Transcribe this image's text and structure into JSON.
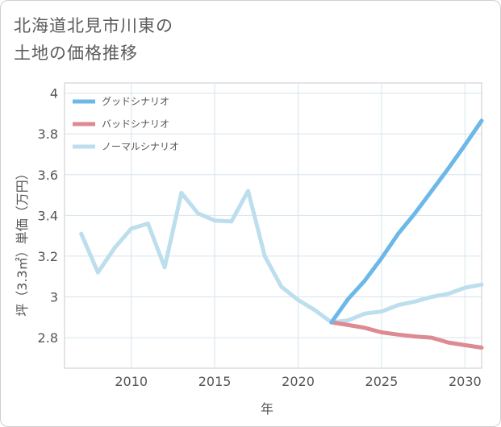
{
  "page": {
    "title_line1": "北海道北見市川東の",
    "title_line2": "土地の価格推移"
  },
  "chart_data": {
    "type": "line",
    "title": "北海道北見市川東の土地の価格推移",
    "xlabel": "年",
    "ylabel": "坪（3.3㎡）単価（万円）",
    "xlim": [
      2006,
      2031
    ],
    "ylim": [
      2.65,
      4.05
    ],
    "xticks": [
      2010,
      2015,
      2020,
      2025,
      2030
    ],
    "yticks": [
      2.8,
      3.0,
      3.2,
      3.4,
      3.6,
      3.8,
      4.0
    ],
    "ytick_labels": [
      "2.8",
      "3",
      "3.2",
      "3.4",
      "3.6",
      "3.8",
      "4"
    ],
    "grid": true,
    "legend_position": "top-left",
    "series": [
      {
        "name": "グッドシナリオ",
        "color": "#6cb8e8",
        "x": [
          2022,
          2023,
          2024,
          2025,
          2026,
          2027,
          2028,
          2029,
          2030,
          2031
        ],
        "y": [
          2.875,
          2.99,
          3.08,
          3.19,
          3.31,
          3.41,
          3.52,
          3.63,
          3.745,
          3.865
        ]
      },
      {
        "name": "バッドシナリオ",
        "color": "#dd8a92",
        "x": [
          2022,
          2023,
          2024,
          2025,
          2026,
          2027,
          2028,
          2029,
          2030,
          2031
        ],
        "y": [
          2.875,
          2.862,
          2.848,
          2.826,
          2.815,
          2.806,
          2.8,
          2.776,
          2.763,
          2.751
        ]
      },
      {
        "name": "ノーマルシナリオ",
        "color": "#bcdeed",
        "x": [
          2007,
          2008,
          2009,
          2010,
          2011,
          2012,
          2013,
          2014,
          2015,
          2016,
          2017,
          2018,
          2019,
          2020,
          2021,
          2022,
          2023,
          2024,
          2025,
          2026,
          2027,
          2028,
          2029,
          2030,
          2031
        ],
        "y": [
          3.31,
          3.12,
          3.24,
          3.335,
          3.36,
          3.145,
          3.51,
          3.41,
          3.375,
          3.37,
          3.52,
          3.2,
          3.05,
          2.985,
          2.935,
          2.875,
          2.885,
          2.918,
          2.928,
          2.96,
          2.977,
          3.0,
          3.015,
          3.045,
          3.06
        ]
      }
    ]
  }
}
